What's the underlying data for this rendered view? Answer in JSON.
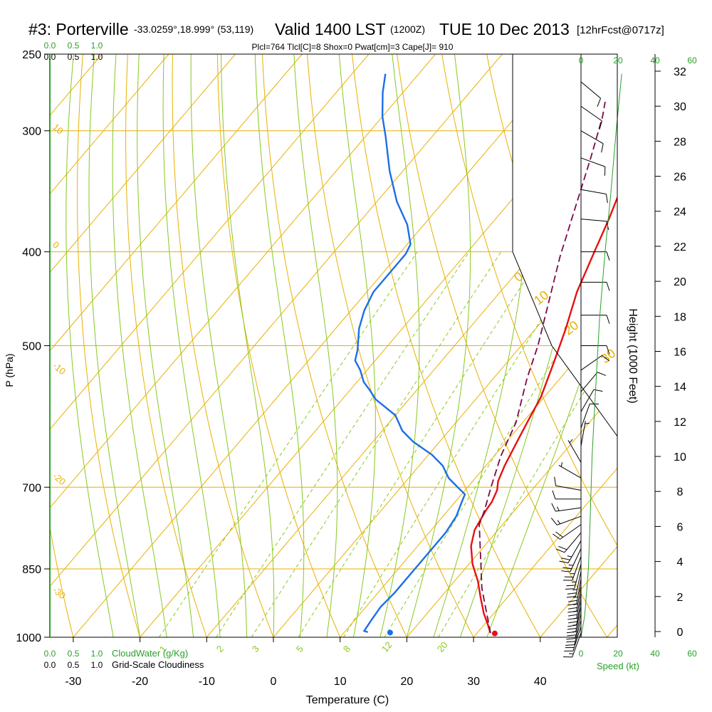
{
  "header": {
    "station": "#3: Porterville",
    "coords": "-33.0259°,18.999° (53,119)",
    "valid": "Valid 1400 LST",
    "zulu": "(1200Z)",
    "date": "TUE 10 Dec 2013",
    "forecast": "[12hrFcst@0717z]",
    "indices": "Plcl=764 Tlcl[C]=8 Shox=0 Pwat[cm]=3 Cape[J]= 910"
  },
  "colors": {
    "temperature": "#e81010",
    "dewpoint": "#1c6ee8",
    "parcel": "#7a0a4a",
    "isotherm": "#e8b000",
    "dry_adiabat": "#e8b000",
    "moist_adiabat": "#88c820",
    "mixing_ratio": "#88c820",
    "cloud": "#2aa02a",
    "speed": "#2aa02a"
  },
  "chart_data": {
    "type": "line",
    "title": "#3: Porterville  Valid 1400 LST (1200Z) TUE 10 Dec 2013",
    "xlabel": "Temperature (C)",
    "ylabel": "P (hPa)",
    "y2label": "Height (1000 Feet)",
    "xlim": [
      -35,
      45
    ],
    "ylim": [
      1000,
      250
    ],
    "x_ticks": [
      -30,
      -20,
      -10,
      0,
      10,
      20,
      30,
      40
    ],
    "pressure_ticks": [
      250,
      300,
      400,
      500,
      700,
      850,
      1000
    ],
    "height_ticks": [
      0,
      2,
      4,
      6,
      8,
      10,
      12,
      14,
      16,
      18,
      20,
      22,
      24,
      26,
      28,
      30,
      32
    ],
    "isotherm_labels": [
      {
        "t": 0,
        "text": "0"
      },
      {
        "t": 10,
        "text": "10"
      },
      {
        "t": 20,
        "text": "20"
      },
      {
        "t": 30,
        "text": "30"
      }
    ],
    "dry_adiabat_labels": [
      {
        "text": "10",
        "p": 300
      },
      {
        "text": "0",
        "p": 400
      },
      {
        "text": "-10",
        "p": 520
      },
      {
        "text": "-20",
        "p": 680
      },
      {
        "text": "-30",
        "p": 870
      }
    ],
    "mixing_ratio_labels": [
      "1",
      "2",
      "3",
      "5",
      "8",
      "12",
      "20"
    ],
    "mixing_ratio_values": [
      1,
      2,
      3,
      5,
      8,
      12,
      20
    ],
    "moist_adiabats_thetaw_c": [
      -24,
      -20,
      -16,
      -12,
      -8,
      -4,
      0,
      4,
      8,
      12,
      16,
      20,
      24,
      28,
      32
    ],
    "series": [
      {
        "name": "Temperature",
        "points": [
          [
            32.0,
            990
          ],
          [
            30.5,
            970
          ],
          [
            28.5,
            945
          ],
          [
            26.0,
            910
          ],
          [
            23.5,
            875
          ],
          [
            20.5,
            840
          ],
          [
            18.0,
            805
          ],
          [
            16.5,
            775
          ],
          [
            15.7,
            740
          ],
          [
            15.5,
            725
          ],
          [
            14.8,
            705
          ],
          [
            13.8,
            690
          ],
          [
            12.8,
            665
          ],
          [
            11.5,
            625
          ],
          [
            10.5,
            595
          ],
          [
            9.5,
            565
          ],
          [
            7.0,
            520
          ],
          [
            4.5,
            480
          ],
          [
            1.5,
            440
          ],
          [
            -1.0,
            400
          ],
          [
            -3.0,
            370
          ],
          [
            -5.0,
            345
          ],
          [
            -7.0,
            320
          ],
          [
            -8.5,
            302
          ],
          [
            -10.5,
            285
          ],
          [
            -11.5,
            270
          ],
          [
            -12.2,
            260
          ]
        ]
      },
      {
        "name": "Dewpoint",
        "points": [
          [
            13.5,
            988
          ],
          [
            12.8,
            985
          ],
          [
            12.5,
            960
          ],
          [
            12.2,
            930
          ],
          [
            12.5,
            900
          ],
          [
            12.5,
            870
          ],
          [
            12.5,
            840
          ],
          [
            12.5,
            810
          ],
          [
            12.5,
            780
          ],
          [
            12.0,
            750
          ],
          [
            11.0,
            725
          ],
          [
            10.5,
            712
          ],
          [
            8.5,
            700
          ],
          [
            6.0,
            685
          ],
          [
            3.5,
            665
          ],
          [
            0.5,
            648
          ],
          [
            -4.0,
            628
          ],
          [
            -7.0,
            612
          ],
          [
            -10.0,
            590
          ],
          [
            -15.0,
            568
          ],
          [
            -17.0,
            556
          ],
          [
            -19.0,
            545
          ],
          [
            -21.0,
            530
          ],
          [
            -23.0,
            518
          ],
          [
            -24.0,
            505
          ],
          [
            -26.5,
            480
          ],
          [
            -28.0,
            460
          ],
          [
            -29.0,
            440
          ],
          [
            -29.0,
            420
          ],
          [
            -29.0,
            402
          ],
          [
            -29.5,
            393
          ],
          [
            -32.5,
            375
          ],
          [
            -37.0,
            355
          ],
          [
            -42.0,
            330
          ],
          [
            -47.0,
            304
          ],
          [
            -50.0,
            290
          ],
          [
            -53.0,
            274
          ],
          [
            -55.0,
            262
          ]
        ]
      },
      {
        "name": "Parcel",
        "points": [
          [
            32.0,
            990
          ],
          [
            25.0,
            890
          ],
          [
            16.5,
            765
          ],
          [
            15.5,
            740
          ],
          [
            13.5,
            700
          ],
          [
            11.0,
            650
          ],
          [
            9.0,
            600
          ],
          [
            5.0,
            540
          ],
          [
            2.5,
            500
          ],
          [
            -1.5,
            450
          ],
          [
            -5.5,
            405
          ],
          [
            -9.5,
            360
          ],
          [
            -13.5,
            320
          ],
          [
            -17.0,
            290
          ],
          [
            -18.5,
            280
          ]
        ]
      }
    ],
    "surface_points": [
      {
        "name": "Surface temperature",
        "t": 32.7,
        "p": 991
      },
      {
        "name": "Surface dewpoint",
        "t": 16.9,
        "p": 989
      }
    ],
    "wind_barbs": [
      {
        "p": 990,
        "dir": 200,
        "kt": 15
      },
      {
        "p": 975,
        "dir": 198,
        "kt": 20
      },
      {
        "p": 960,
        "dir": 195,
        "kt": 22
      },
      {
        "p": 945,
        "dir": 193,
        "kt": 24
      },
      {
        "p": 930,
        "dir": 192,
        "kt": 25
      },
      {
        "p": 915,
        "dir": 190,
        "kt": 25
      },
      {
        "p": 900,
        "dir": 190,
        "kt": 25
      },
      {
        "p": 885,
        "dir": 190,
        "kt": 25
      },
      {
        "p": 870,
        "dir": 190,
        "kt": 25
      },
      {
        "p": 855,
        "dir": 192,
        "kt": 25
      },
      {
        "p": 840,
        "dir": 195,
        "kt": 25
      },
      {
        "p": 825,
        "dir": 200,
        "kt": 25
      },
      {
        "p": 810,
        "dir": 205,
        "kt": 25
      },
      {
        "p": 795,
        "dir": 210,
        "kt": 25
      },
      {
        "p": 780,
        "dir": 220,
        "kt": 20
      },
      {
        "p": 765,
        "dir": 235,
        "kt": 20
      },
      {
        "p": 750,
        "dir": 250,
        "kt": 15
      },
      {
        "p": 735,
        "dir": 262,
        "kt": 15
      },
      {
        "p": 720,
        "dir": 270,
        "kt": 10
      },
      {
        "p": 705,
        "dir": 280,
        "kt": 10
      },
      {
        "p": 685,
        "dir": 300,
        "kt": 5
      },
      {
        "p": 660,
        "dir": 330,
        "kt": 5
      },
      {
        "p": 635,
        "dir": 10,
        "kt": 5
      },
      {
        "p": 608,
        "dir": 20,
        "kt": 10
      },
      {
        "p": 585,
        "dir": 30,
        "kt": 10
      },
      {
        "p": 558,
        "dir": 40,
        "kt": 10
      },
      {
        "p": 530,
        "dir": 55,
        "kt": 10
      },
      {
        "p": 500,
        "dir": 90,
        "kt": 10
      },
      {
        "p": 465,
        "dir": 90,
        "kt": 10
      },
      {
        "p": 430,
        "dir": 90,
        "kt": 10
      },
      {
        "p": 400,
        "dir": 90,
        "kt": 10
      },
      {
        "p": 370,
        "dir": 95,
        "kt": 10
      },
      {
        "p": 345,
        "dir": 100,
        "kt": 10
      },
      {
        "p": 320,
        "dir": 110,
        "kt": 10
      },
      {
        "p": 300,
        "dir": 120,
        "kt": 10
      },
      {
        "p": 283,
        "dir": 125,
        "kt": 10
      },
      {
        "p": 267,
        "dir": 130,
        "kt": 10
      }
    ],
    "wind_speed_profile": {
      "xlim": [
        0,
        60
      ],
      "ticks": [
        0,
        20,
        40,
        60
      ],
      "points": [
        [
          0,
          1000
        ],
        [
          2,
          950
        ],
        [
          4,
          850
        ],
        [
          5,
          750
        ],
        [
          6,
          650
        ],
        [
          8,
          550
        ],
        [
          10,
          470
        ],
        [
          13,
          400
        ],
        [
          16,
          350
        ],
        [
          19,
          300
        ],
        [
          22,
          262
        ]
      ]
    },
    "legends": {
      "cloud_scale_ticks": [
        "0.0",
        "0.5",
        "1.0"
      ],
      "cloud_water_label": "CloudWater (g/Kg)",
      "cloudiness_label": "Grid-Scale Cloudiness",
      "speed_label": "Speed (kt)"
    }
  }
}
